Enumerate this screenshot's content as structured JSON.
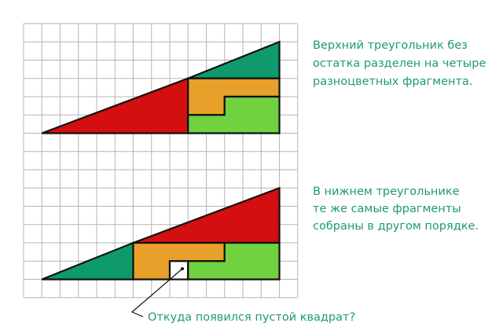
{
  "top_caption": {
    "lines": [
      "Верхний треугольник без",
      "остатка разделен на четыре",
      "разноцветных фрагмента."
    ]
  },
  "bottom_caption": {
    "lines": [
      "В нижнем треугольнике",
      "те же самые фрагменты",
      "собраны в другом порядке."
    ]
  },
  "question": "Откуда появился пустой квадрат?"
}
